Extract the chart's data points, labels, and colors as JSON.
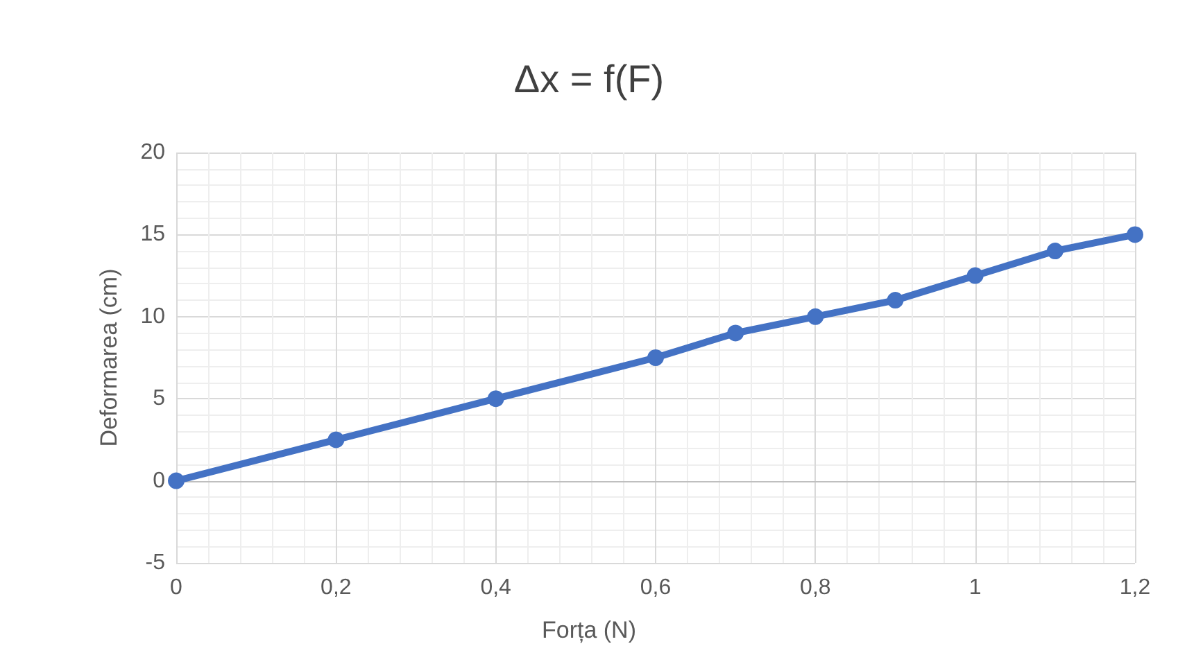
{
  "chart_data": {
    "type": "line",
    "title": "Δx = f(F)",
    "xlabel": "Forța (N)",
    "ylabel": "Deformarea (cm)",
    "x": [
      0,
      0.2,
      0.4,
      0.6,
      0.7,
      0.8,
      0.9,
      1,
      1.1,
      1.2
    ],
    "series": [
      {
        "color": "#4472c4",
        "values": [
          0,
          2.5,
          5,
          7.5,
          9,
          10,
          11,
          12.5,
          14,
          15
        ]
      }
    ],
    "xlim": [
      0,
      1.2
    ],
    "xticks": [
      {
        "value": 0,
        "label": "0"
      },
      {
        "value": 0.2,
        "label": "0,2"
      },
      {
        "value": 0.4,
        "label": "0,4"
      },
      {
        "value": 0.6,
        "label": "0,6"
      },
      {
        "value": 0.8,
        "label": "0,8"
      },
      {
        "value": 1,
        "label": "1"
      },
      {
        "value": 1.2,
        "label": "1,2"
      }
    ],
    "ylim": [
      -5,
      20
    ],
    "yticks": [
      -5,
      0,
      5,
      10,
      15,
      20
    ],
    "grid": true,
    "marker": "circle",
    "line_style": "solid"
  }
}
